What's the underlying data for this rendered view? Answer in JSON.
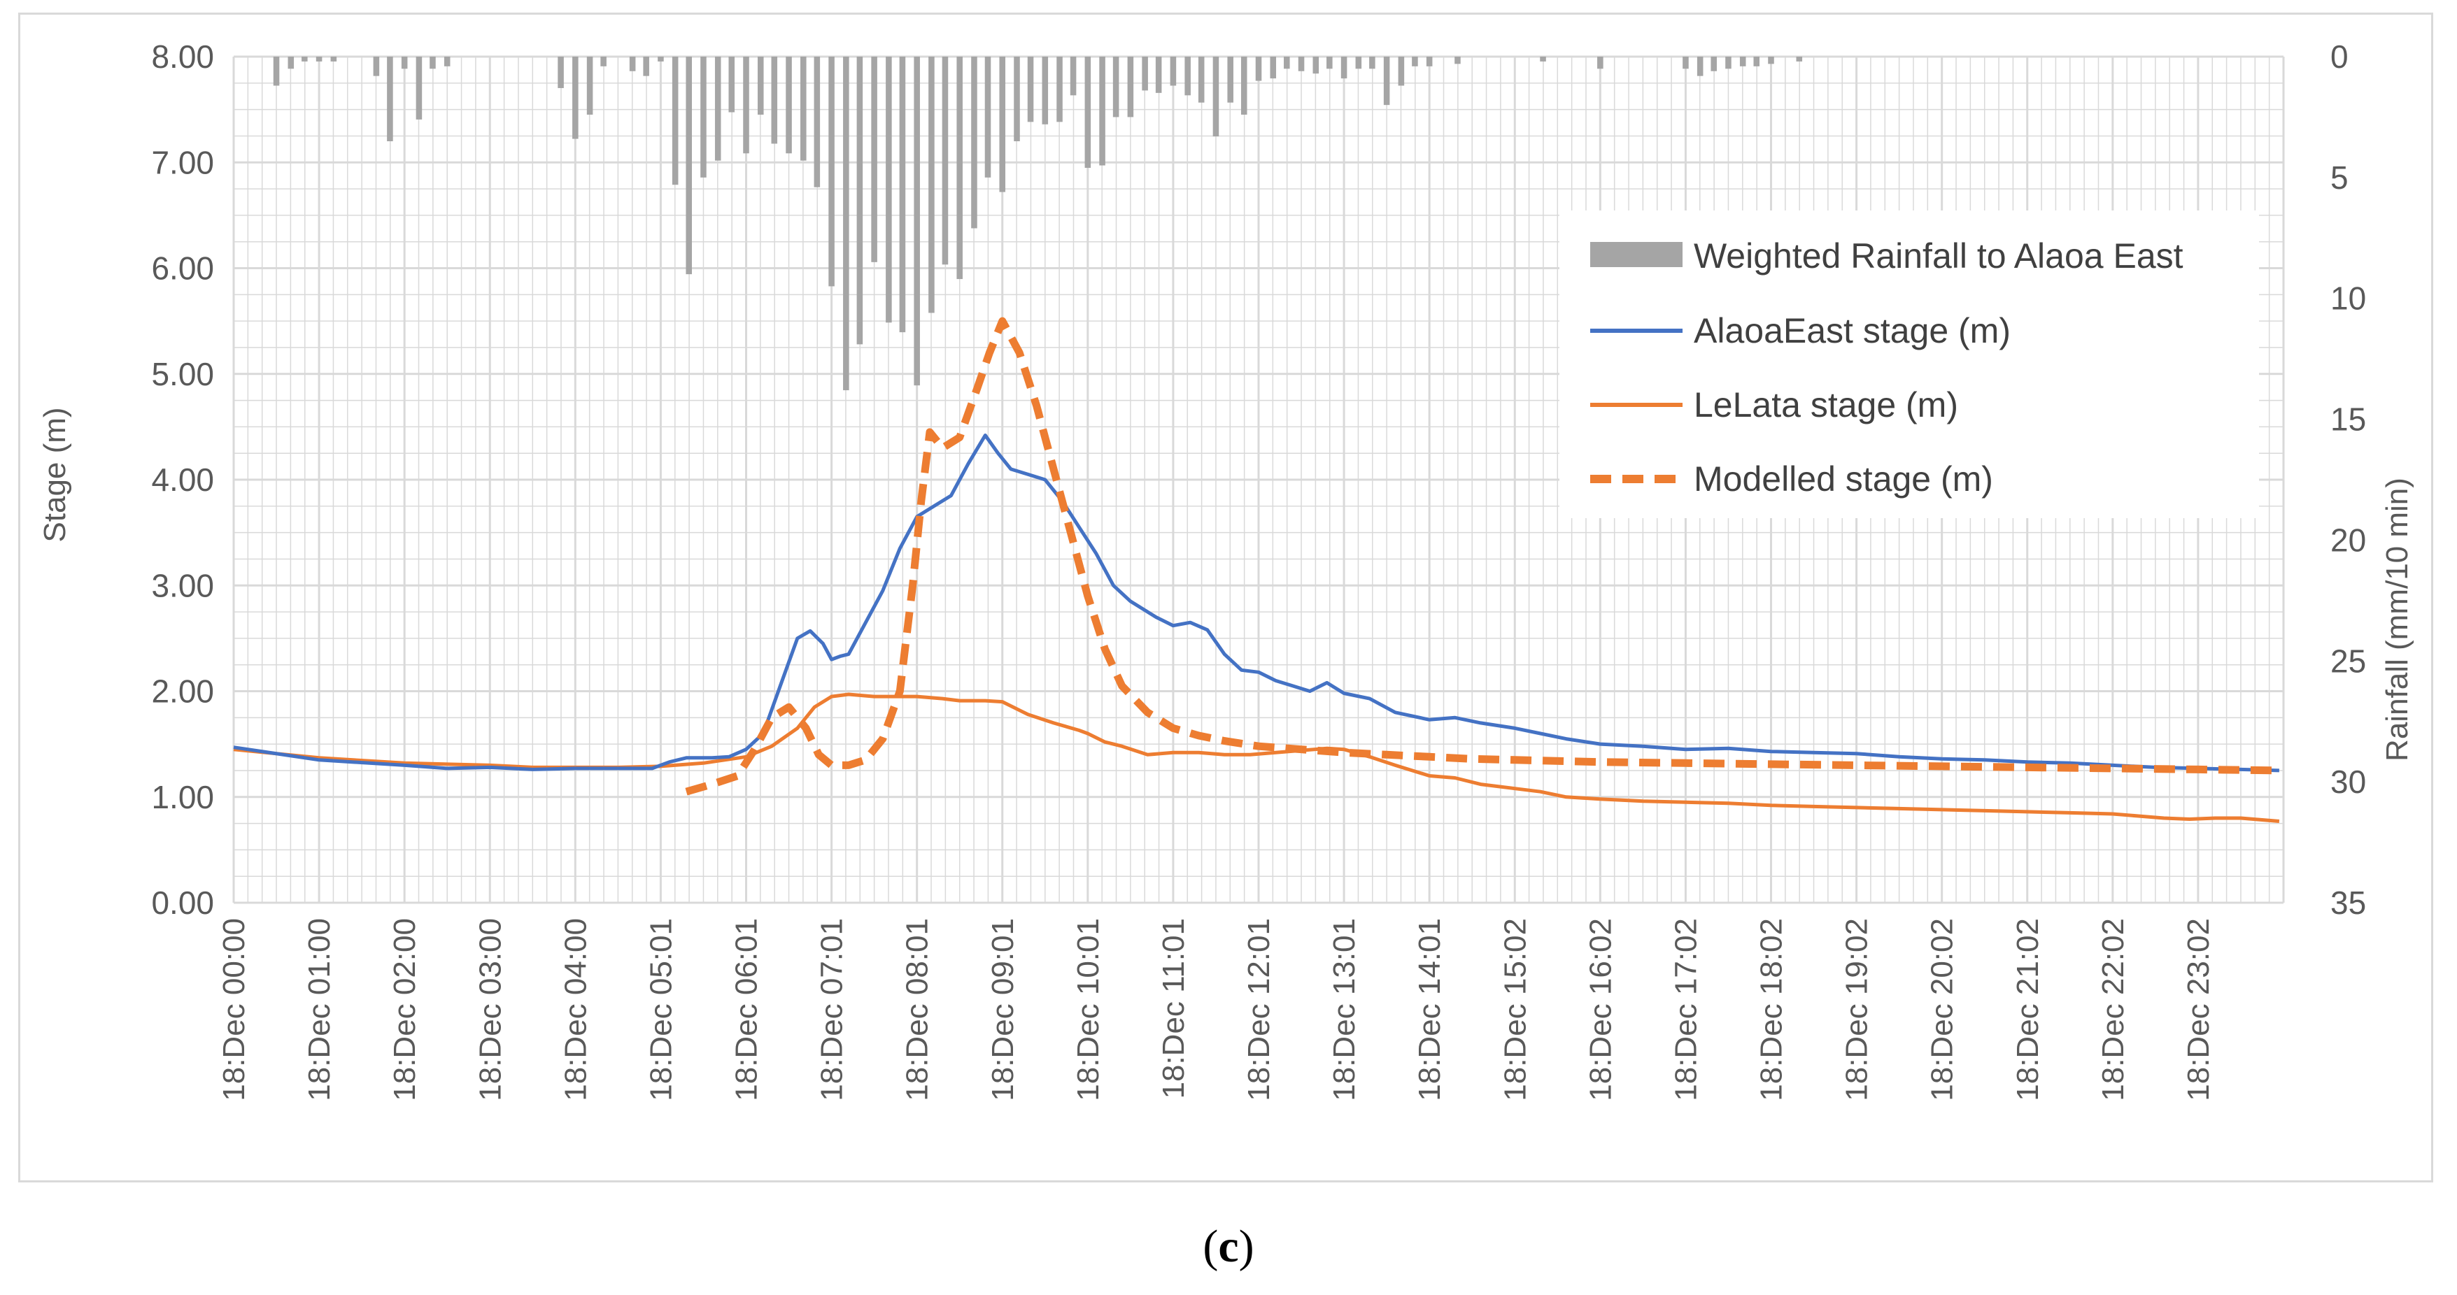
{
  "figure": {
    "panel_label_open": "(",
    "panel_label_letter": "c",
    "panel_label_close": ")"
  },
  "colors": {
    "alaoa": "#4472c4",
    "lelata": "#ed7d31",
    "modelled": "#ed7d31",
    "rain": "#a5a5a5",
    "grid": "#d9d9d9",
    "text": "#595959"
  },
  "chart_data": {
    "type": "bar+line",
    "title": "",
    "ylabel": "Stage (m)",
    "y2label": "Rainfall (mm/10 min)",
    "ylim": [
      0,
      8
    ],
    "y2lim": [
      0,
      35
    ],
    "y2_inverted": true,
    "y_ticks": [
      "0.00",
      "1.00",
      "2.00",
      "3.00",
      "4.00",
      "5.00",
      "6.00",
      "7.00",
      "8.00"
    ],
    "y2_ticks": [
      "0",
      "5",
      "10",
      "15",
      "20",
      "25",
      "30",
      "35"
    ],
    "x_unit": "hours since 18 Dec 00:00",
    "xlim": [
      0,
      24
    ],
    "x_ticks": [
      "18:Dec 00:00",
      "18:Dec 01:00",
      "18:Dec 02:00",
      "18:Dec 03:00",
      "18:Dec 04:00",
      "18:Dec 05:01",
      "18:Dec 06:01",
      "18:Dec 07:01",
      "18:Dec 08:01",
      "18:Dec 09:01",
      "18:Dec 10:01",
      "18:Dec 11:01",
      "18:Dec 12:01",
      "18:Dec 13:01",
      "18:Dec 14:01",
      "18:Dec 15:02",
      "18:Dec 16:02",
      "18:Dec 17:02",
      "18:Dec 18:02",
      "18:Dec 19:02",
      "18:Dec 20:02",
      "18:Dec 21:02",
      "18:Dec 22:02",
      "18:Dec 23:02"
    ],
    "legend": {
      "placement": "top-right"
    },
    "series": [
      {
        "name": "Weighted Rainfall to Alaoa East",
        "type": "bar",
        "axis": "right",
        "x": [
          0.5,
          0.67,
          0.83,
          1.0,
          1.17,
          1.67,
          1.83,
          2.0,
          2.17,
          2.33,
          2.5,
          3.83,
          4.0,
          4.17,
          4.33,
          4.67,
          4.83,
          5.0,
          5.17,
          5.33,
          5.5,
          5.67,
          5.83,
          6.0,
          6.17,
          6.33,
          6.5,
          6.67,
          6.83,
          7.0,
          7.17,
          7.33,
          7.5,
          7.67,
          7.83,
          8.0,
          8.17,
          8.33,
          8.5,
          8.67,
          8.83,
          9.0,
          9.17,
          9.33,
          9.5,
          9.67,
          9.83,
          10.0,
          10.17,
          10.33,
          10.5,
          10.67,
          10.83,
          11.0,
          11.17,
          11.33,
          11.5,
          11.67,
          11.83,
          12.0,
          12.17,
          12.33,
          12.5,
          12.67,
          12.83,
          13.0,
          13.17,
          13.33,
          13.5,
          13.67,
          13.83,
          14.0,
          14.33,
          15.33,
          16.0,
          17.0,
          17.17,
          17.33,
          17.5,
          17.67,
          17.83,
          18.0,
          18.33
        ],
        "values": [
          1.2,
          0.5,
          0.2,
          0.2,
          0.2,
          0.8,
          3.5,
          0.5,
          2.6,
          0.5,
          0.4,
          1.3,
          3.4,
          2.4,
          0.4,
          0.6,
          0.8,
          0.2,
          5.3,
          9.0,
          5.0,
          4.3,
          2.3,
          4.0,
          2.4,
          3.6,
          4.0,
          4.3,
          5.4,
          9.5,
          13.8,
          11.9,
          8.5,
          11.0,
          11.4,
          13.6,
          10.6,
          8.6,
          9.2,
          7.1,
          5.0,
          5.6,
          3.5,
          2.7,
          2.8,
          2.7,
          1.6,
          4.6,
          4.5,
          2.5,
          2.5,
          1.4,
          1.5,
          1.2,
          1.6,
          1.9,
          3.3,
          1.9,
          2.4,
          1.0,
          0.9,
          0.5,
          0.6,
          0.7,
          0.5,
          0.9,
          0.5,
          0.5,
          2.0,
          1.2,
          0.4,
          0.4,
          0.3,
          0.2,
          0.5,
          0.5,
          0.8,
          0.6,
          0.5,
          0.4,
          0.4,
          0.3,
          0.2
        ]
      },
      {
        "name": "AlaoaEast stage (m)",
        "type": "line",
        "axis": "left",
        "x": [
          0,
          1,
          2,
          2.5,
          3,
          3.5,
          4,
          4.5,
          4.9,
          5.1,
          5.3,
          5.6,
          5.8,
          6.0,
          6.2,
          6.4,
          6.6,
          6.75,
          6.9,
          7.0,
          7.1,
          7.2,
          7.4,
          7.6,
          7.8,
          8.0,
          8.2,
          8.4,
          8.6,
          8.8,
          8.95,
          9.1,
          9.3,
          9.5,
          9.7,
          9.9,
          10.1,
          10.3,
          10.5,
          10.8,
          11.0,
          11.2,
          11.4,
          11.6,
          11.8,
          12.0,
          12.2,
          12.4,
          12.6,
          12.8,
          13.0,
          13.3,
          13.6,
          14.0,
          14.3,
          14.6,
          15.0,
          15.3,
          15.6,
          16.0,
          16.5,
          17.0,
          17.5,
          18.0,
          18.5,
          19.0,
          19.5,
          20.0,
          20.5,
          21.0,
          21.5,
          22.0,
          22.5,
          23.0,
          23.5,
          23.95
        ],
        "values": [
          1.47,
          1.35,
          1.3,
          1.27,
          1.28,
          1.26,
          1.27,
          1.27,
          1.27,
          1.33,
          1.37,
          1.37,
          1.38,
          1.45,
          1.6,
          2.05,
          2.5,
          2.57,
          2.45,
          2.3,
          2.33,
          2.35,
          2.65,
          2.95,
          3.35,
          3.65,
          3.75,
          3.85,
          4.15,
          4.42,
          4.25,
          4.1,
          4.05,
          4.0,
          3.8,
          3.55,
          3.3,
          3.0,
          2.85,
          2.7,
          2.62,
          2.65,
          2.58,
          2.35,
          2.2,
          2.18,
          2.1,
          2.05,
          2.0,
          2.08,
          1.98,
          1.93,
          1.8,
          1.73,
          1.75,
          1.7,
          1.65,
          1.6,
          1.55,
          1.5,
          1.48,
          1.45,
          1.46,
          1.43,
          1.42,
          1.41,
          1.38,
          1.36,
          1.35,
          1.33,
          1.32,
          1.3,
          1.28,
          1.27,
          1.26,
          1.25
        ]
      },
      {
        "name": "LeLata stage (m)",
        "type": "line",
        "axis": "left",
        "x": [
          0,
          1,
          2,
          3,
          3.5,
          4,
          4.5,
          5.0,
          5.5,
          6.0,
          6.3,
          6.6,
          6.8,
          7.0,
          7.2,
          7.5,
          7.8,
          8.0,
          8.3,
          8.5,
          8.8,
          9.0,
          9.3,
          9.6,
          9.9,
          10.0,
          10.2,
          10.4,
          10.7,
          11.0,
          11.3,
          11.6,
          11.9,
          12.2,
          12.5,
          12.8,
          13.0,
          13.3,
          13.6,
          14.0,
          14.3,
          14.6,
          15.0,
          15.3,
          15.6,
          16.0,
          16.5,
          17.0,
          17.5,
          18.0,
          18.5,
          19.0,
          19.5,
          20.0,
          20.5,
          21.0,
          21.5,
          22.0,
          22.3,
          22.6,
          22.9,
          23.2,
          23.5,
          23.95
        ],
        "values": [
          1.45,
          1.37,
          1.32,
          1.3,
          1.28,
          1.28,
          1.28,
          1.29,
          1.32,
          1.38,
          1.48,
          1.65,
          1.85,
          1.95,
          1.97,
          1.95,
          1.95,
          1.95,
          1.93,
          1.91,
          1.91,
          1.9,
          1.78,
          1.7,
          1.63,
          1.6,
          1.52,
          1.48,
          1.4,
          1.42,
          1.42,
          1.4,
          1.4,
          1.42,
          1.44,
          1.46,
          1.45,
          1.38,
          1.3,
          1.2,
          1.18,
          1.12,
          1.08,
          1.05,
          1.0,
          0.98,
          0.96,
          0.95,
          0.94,
          0.92,
          0.91,
          0.9,
          0.89,
          0.88,
          0.87,
          0.86,
          0.85,
          0.84,
          0.82,
          0.8,
          0.79,
          0.8,
          0.8,
          0.77
        ]
      },
      {
        "name": "Modelled stage (m)",
        "type": "line",
        "dashed": true,
        "axis": "left",
        "x": [
          5.3,
          5.6,
          5.9,
          6.1,
          6.3,
          6.5,
          6.7,
          6.85,
          7.0,
          7.2,
          7.4,
          7.6,
          7.8,
          7.95,
          8.05,
          8.15,
          8.3,
          8.5,
          8.7,
          8.85,
          9.0,
          9.2,
          9.4,
          9.6,
          9.8,
          10.0,
          10.2,
          10.4,
          10.7,
          11.0,
          11.3,
          11.6,
          12.0,
          12.5,
          13.0,
          13.5,
          14.0,
          14.5,
          15.0,
          16.0,
          17.0,
          18.0,
          19.0,
          20.0,
          21.0,
          22.0,
          23.0,
          23.95
        ],
        "values": [
          1.05,
          1.12,
          1.2,
          1.45,
          1.75,
          1.85,
          1.65,
          1.4,
          1.3,
          1.3,
          1.35,
          1.55,
          2.0,
          3.0,
          3.8,
          4.45,
          4.3,
          4.4,
          4.85,
          5.2,
          5.5,
          5.2,
          4.7,
          4.1,
          3.5,
          2.9,
          2.4,
          2.05,
          1.8,
          1.65,
          1.58,
          1.53,
          1.48,
          1.45,
          1.42,
          1.4,
          1.38,
          1.36,
          1.35,
          1.33,
          1.32,
          1.31,
          1.3,
          1.29,
          1.28,
          1.27,
          1.26,
          1.25
        ]
      }
    ]
  }
}
